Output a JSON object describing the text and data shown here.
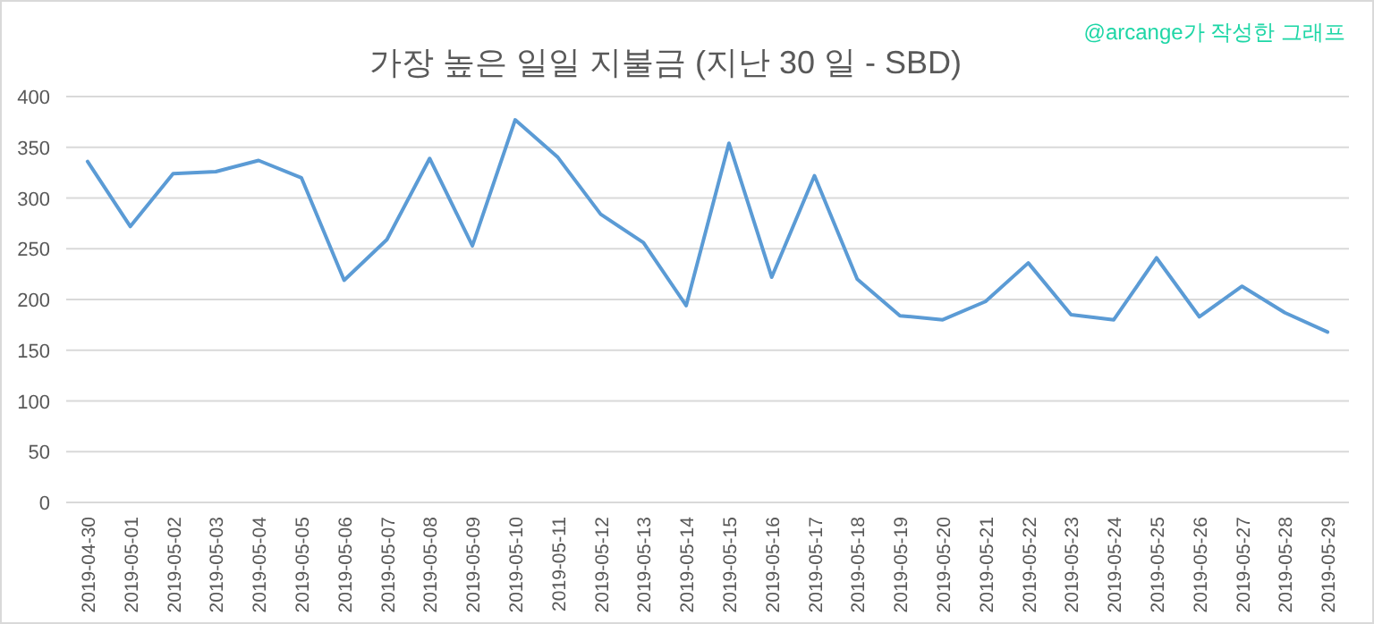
{
  "chart_data": {
    "type": "line",
    "title": "가장 높은 일일 지불금 (지난 30 일 - SBD)",
    "annotations": [
      "@arcange가 작성한 그래프"
    ],
    "categories": [
      "2019-04-30",
      "2019-05-01",
      "2019-05-02",
      "2019-05-03",
      "2019-05-04",
      "2019-05-05",
      "2019-05-06",
      "2019-05-07",
      "2019-05-08",
      "2019-05-09",
      "2019-05-10",
      "2019-05-11",
      "2019-05-12",
      "2019-05-13",
      "2019-05-14",
      "2019-05-15",
      "2019-05-16",
      "2019-05-17",
      "2019-05-18",
      "2019-05-19",
      "2019-05-20",
      "2019-05-21",
      "2019-05-22",
      "2019-05-23",
      "2019-05-24",
      "2019-05-25",
      "2019-05-26",
      "2019-05-27",
      "2019-05-28",
      "2019-05-29"
    ],
    "series": [
      {
        "color": "#5b9bd5",
        "values": [
          336,
          272,
          324,
          326,
          337,
          320,
          219,
          259,
          339,
          253,
          377,
          340,
          284,
          256,
          194,
          354,
          222,
          322,
          220,
          184,
          180,
          198,
          236,
          185,
          180,
          241,
          183,
          213,
          187,
          168
        ]
      }
    ],
    "ylim": [
      0,
      400
    ],
    "yticks": [
      0,
      50,
      100,
      150,
      200,
      250,
      300,
      350,
      400
    ],
    "grid": "y",
    "marker": "none",
    "line_style": "solid"
  }
}
